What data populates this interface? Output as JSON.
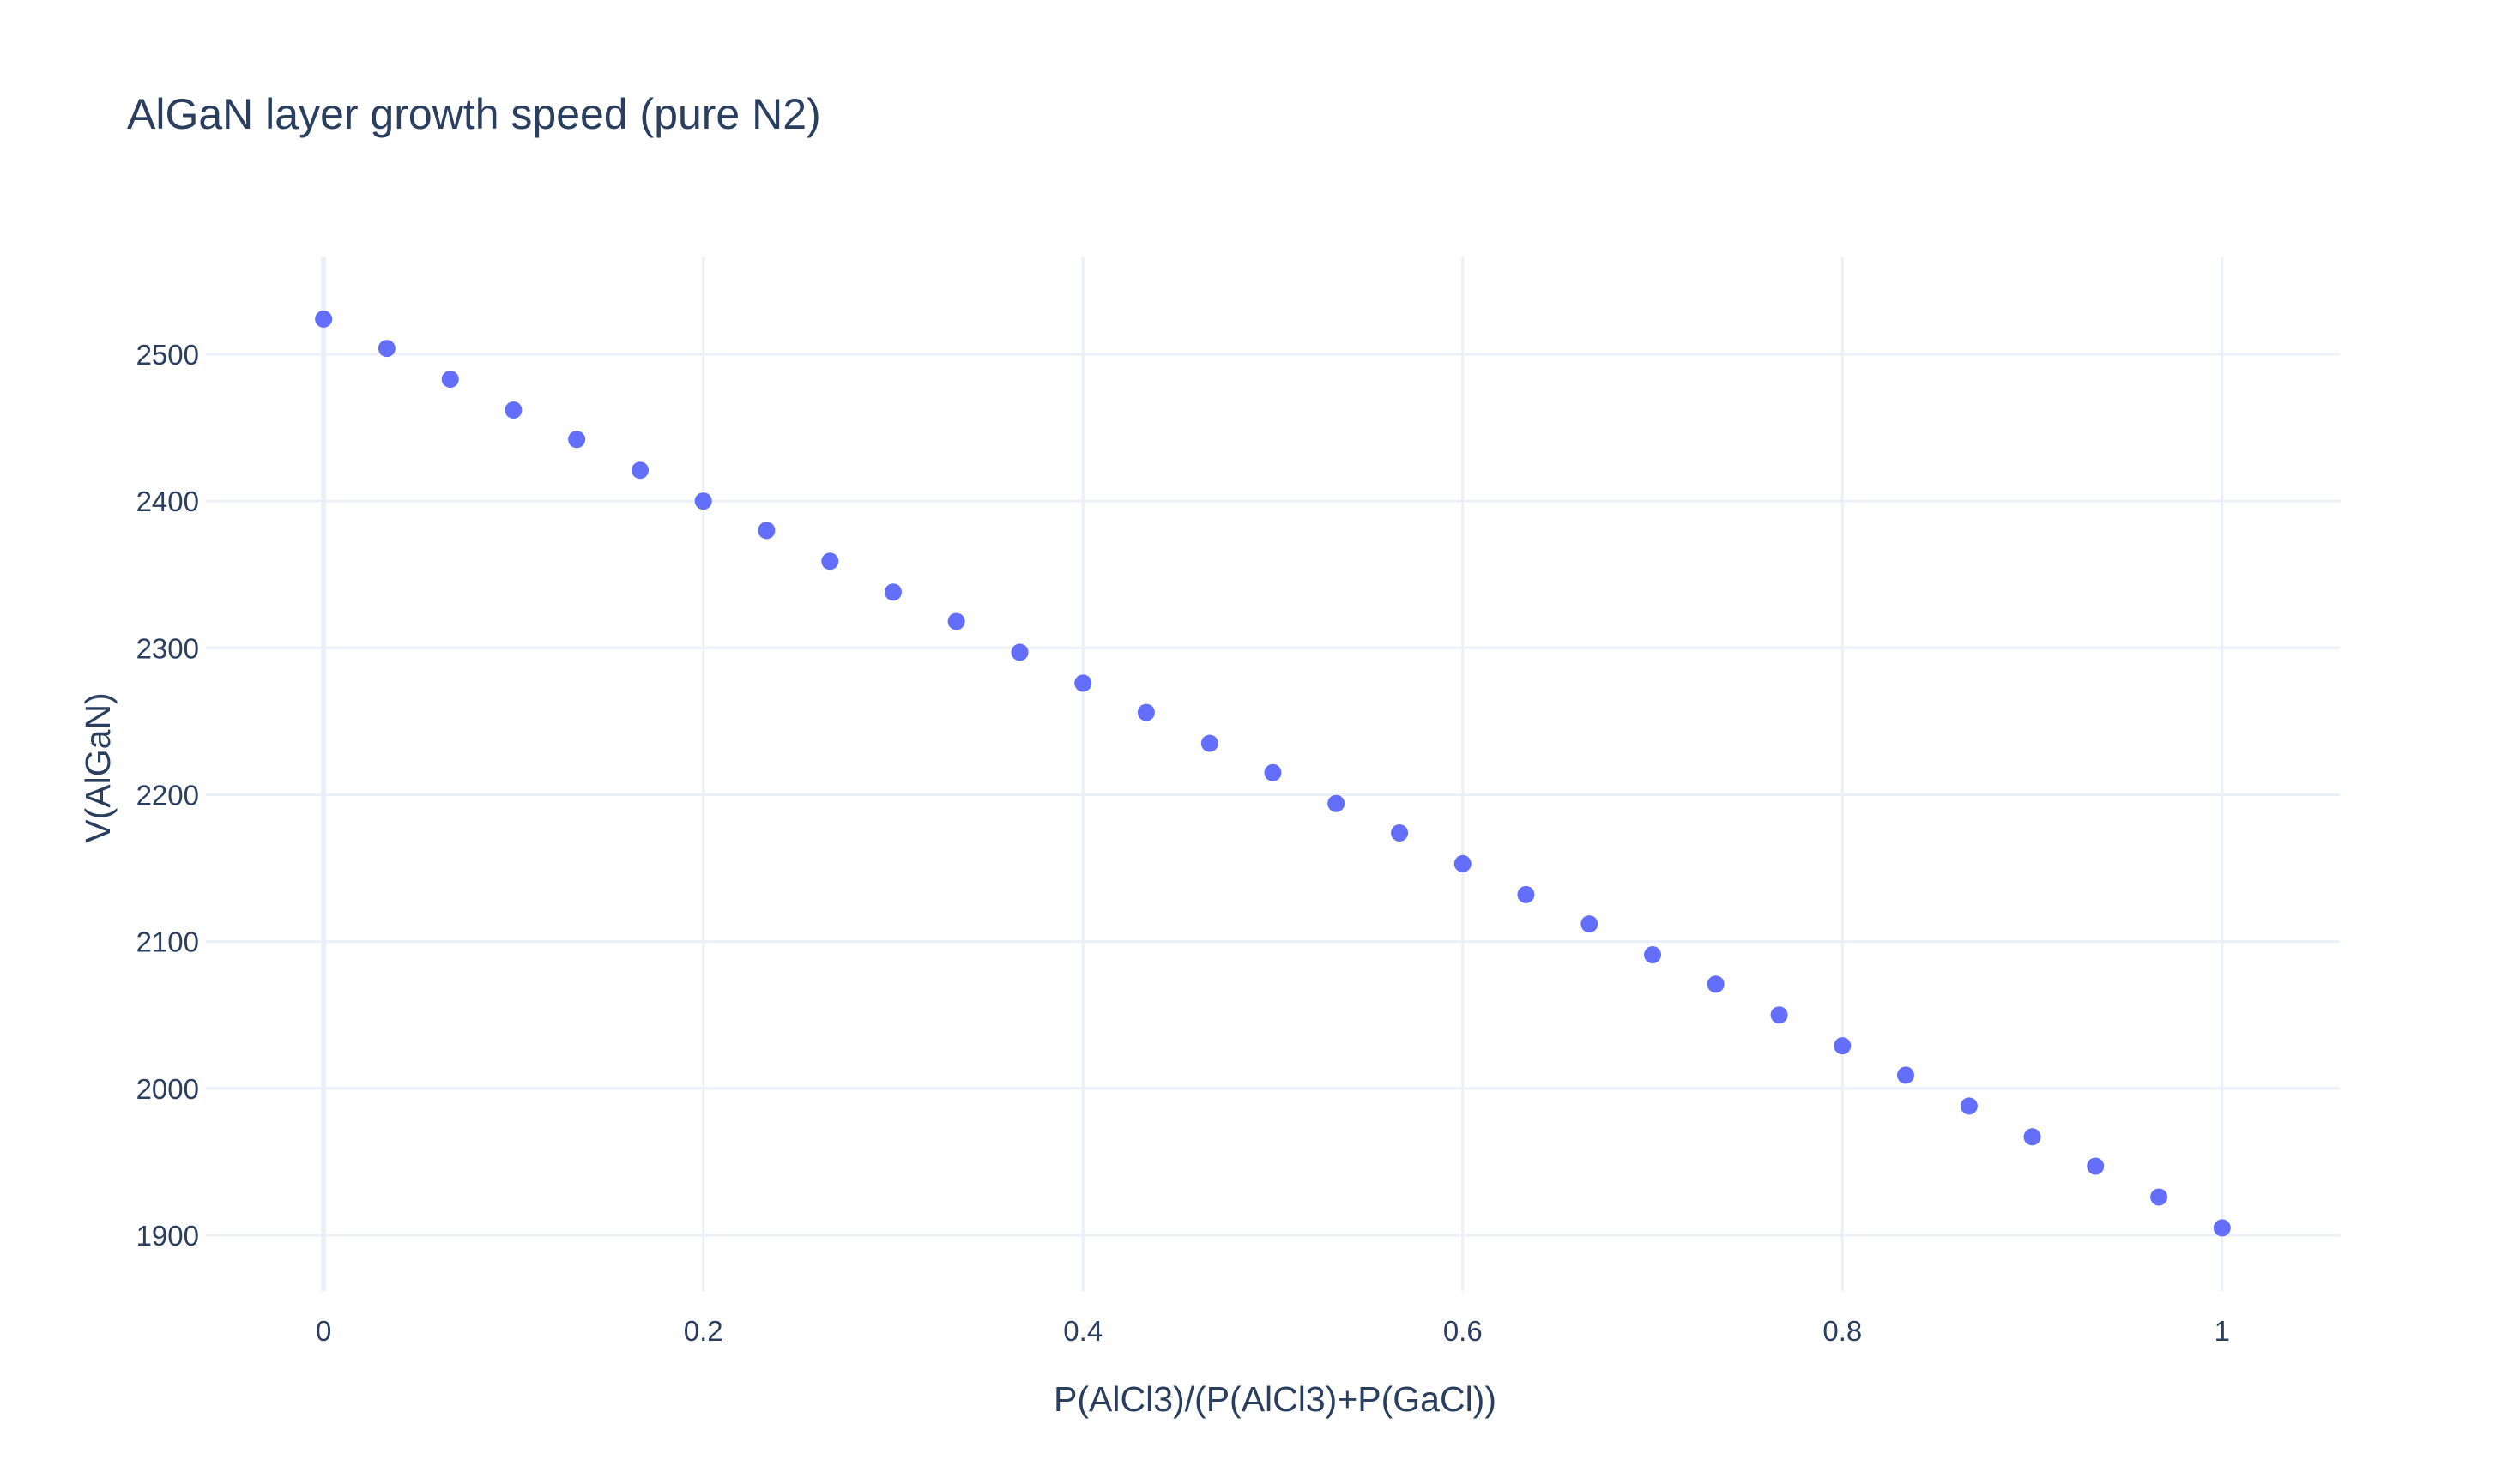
{
  "chart_data": {
    "type": "scatter",
    "title": "AlGaN layer growth speed (pure N2)",
    "xlabel": "P(AlCl3)/(P(AlCl3)+P(GaCl))",
    "ylabel": "V(AlGaN)",
    "xlim": [
      -0.062,
      1.062
    ],
    "ylim": [
      1862,
      2566
    ],
    "x_ticks": [
      0,
      0.2,
      0.4,
      0.6,
      0.8,
      1
    ],
    "x_tick_labels": [
      "0",
      "0.2",
      "0.4",
      "0.6",
      "0.8",
      "1"
    ],
    "y_ticks": [
      1900,
      2000,
      2100,
      2200,
      2300,
      2400,
      2500
    ],
    "y_tick_labels": [
      "1900",
      "2000",
      "2100",
      "2200",
      "2300",
      "2400",
      "2500"
    ],
    "grid": true,
    "marker_color": "#636efa",
    "series": [
      {
        "x": [
          0,
          0.0333,
          0.0667,
          0.1,
          0.1333,
          0.1667,
          0.2,
          0.2333,
          0.2667,
          0.3,
          0.3333,
          0.3667,
          0.4,
          0.4333,
          0.4667,
          0.5,
          0.5333,
          0.5667,
          0.6,
          0.6333,
          0.6667,
          0.7,
          0.7333,
          0.7667,
          0.8,
          0.8333,
          0.8667,
          0.9,
          0.9333,
          0.9667,
          1
        ],
        "y": [
          2524,
          2504,
          2483,
          2462,
          2442,
          2421,
          2400,
          2380,
          2359,
          2338,
          2318,
          2297,
          2276,
          2256,
          2235,
          2215,
          2194,
          2174,
          2153,
          2132,
          2112,
          2091,
          2071,
          2050,
          2029,
          2009,
          1988,
          1967,
          1947,
          1926,
          1905
        ]
      }
    ]
  }
}
